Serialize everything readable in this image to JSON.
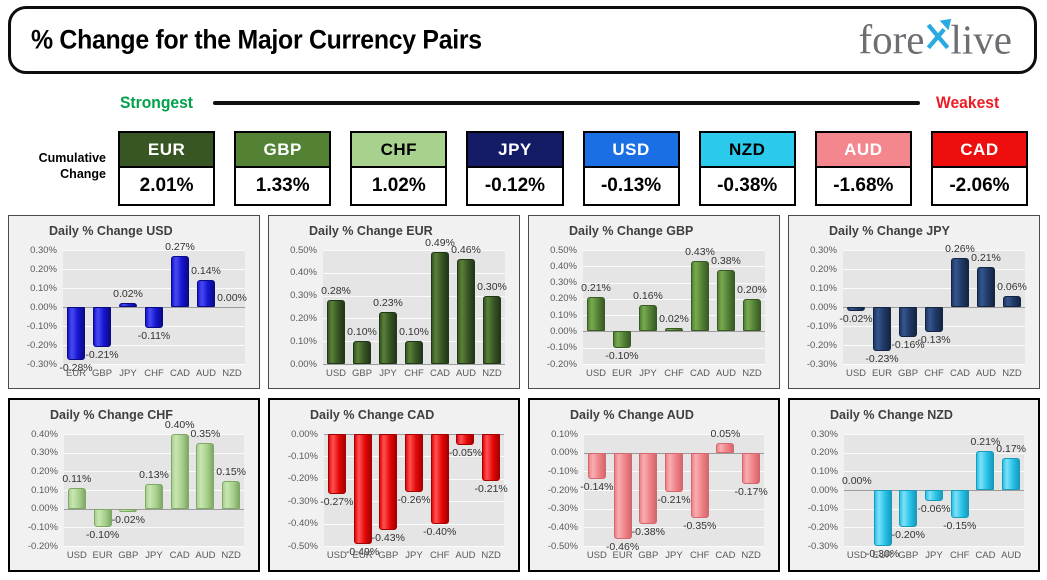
{
  "header": {
    "title": "% Change for the Major Currency Pairs",
    "logo": {
      "part1": "fore",
      "x": "X",
      "part2": "live",
      "x_color": "#29ABE2",
      "text_color": "#6d6e71"
    }
  },
  "scale": {
    "strongest": "Strongest",
    "weakest": "Weakest",
    "strongest_color": "#00A14B",
    "weakest_color": "#ED1C24"
  },
  "cumulative": {
    "label_line1": "Cumulative",
    "label_line2": "Change",
    "items": [
      {
        "code": "EUR",
        "value": "2.01%",
        "bg": "#375623",
        "fg": "#ffffff"
      },
      {
        "code": "GBP",
        "value": "1.33%",
        "bg": "#548235",
        "fg": "#ffffff"
      },
      {
        "code": "CHF",
        "value": "1.02%",
        "bg": "#A9D18E",
        "fg": "#000000"
      },
      {
        "code": "JPY",
        "value": "-0.12%",
        "bg": "#151C66",
        "fg": "#ffffff"
      },
      {
        "code": "USD",
        "value": "-0.13%",
        "bg": "#1B6FE5",
        "fg": "#ffffff"
      },
      {
        "code": "NZD",
        "value": "-0.38%",
        "bg": "#2BC9EC",
        "fg": "#000000"
      },
      {
        "code": "AUD",
        "value": "-1.68%",
        "bg": "#F4878D",
        "fg": "#ffffff"
      },
      {
        "code": "CAD",
        "value": "-2.06%",
        "bg": "#EE0E0E",
        "fg": "#ffffff"
      }
    ]
  },
  "chart_data": [
    {
      "type": "bar",
      "id": "USD",
      "title": "Daily % Change USD",
      "categories": [
        "EUR",
        "GBP",
        "JPY",
        "CHF",
        "CAD",
        "AUD",
        "NZD"
      ],
      "values": [
        -0.28,
        -0.21,
        0.02,
        -0.11,
        0.27,
        0.14,
        0.0
      ],
      "labels": [
        "-0.28%",
        "-0.21%",
        "0.02%",
        "-0.11%",
        "0.27%",
        "0.14%",
        "0.00%"
      ],
      "ylim": [
        -0.3,
        0.3
      ],
      "ytick_step": 0.1,
      "grid": true,
      "legend": "none",
      "bar_base": "#1515D2",
      "bar_light": "#4A4AF2",
      "bar_dark": "#0A0A85"
    },
    {
      "type": "bar",
      "id": "EUR",
      "title": "Daily % Change EUR",
      "categories": [
        "USD",
        "GBP",
        "JPY",
        "CHF",
        "CAD",
        "AUD",
        "NZD"
      ],
      "values": [
        0.28,
        0.1,
        0.23,
        0.1,
        0.49,
        0.46,
        0.3
      ],
      "labels": [
        "0.28%",
        "0.10%",
        "0.23%",
        "0.10%",
        "0.49%",
        "0.46%",
        "0.30%"
      ],
      "ylim": [
        0.0,
        0.5
      ],
      "ytick_step": 0.1,
      "grid": true,
      "legend": "none",
      "bar_base": "#375623",
      "bar_light": "#5A8139",
      "bar_dark": "#22361A"
    },
    {
      "type": "bar",
      "id": "GBP",
      "title": "Daily % Change GBP",
      "categories": [
        "USD",
        "EUR",
        "JPY",
        "CHF",
        "CAD",
        "AUD",
        "NZD"
      ],
      "values": [
        0.21,
        -0.1,
        0.16,
        0.02,
        0.43,
        0.38,
        0.2
      ],
      "labels": [
        "0.21%",
        "-0.10%",
        "0.16%",
        "0.02%",
        "0.43%",
        "0.38%",
        "0.20%"
      ],
      "ylim": [
        -0.2,
        0.5
      ],
      "ytick_step": 0.1,
      "grid": true,
      "legend": "none",
      "bar_base": "#548235",
      "bar_light": "#79AA50",
      "bar_dark": "#395A25"
    },
    {
      "type": "bar",
      "id": "JPY",
      "title": "Daily % Change JPY",
      "categories": [
        "USD",
        "EUR",
        "GBP",
        "CHF",
        "CAD",
        "AUD",
        "NZD"
      ],
      "values": [
        -0.02,
        -0.23,
        -0.16,
        -0.13,
        0.26,
        0.21,
        0.06
      ],
      "labels": [
        "-0.02%",
        "-0.23%",
        "-0.16%",
        "-0.13%",
        "0.26%",
        "0.21%",
        "0.06%"
      ],
      "ylim": [
        -0.3,
        0.3
      ],
      "ytick_step": 0.1,
      "grid": true,
      "legend": "none",
      "bar_base": "#1F3864",
      "bar_light": "#35568E",
      "bar_dark": "#132541"
    },
    {
      "type": "bar",
      "id": "CHF",
      "title": "Daily % Change CHF",
      "categories": [
        "USD",
        "EUR",
        "GBP",
        "JPY",
        "CAD",
        "AUD",
        "NZD"
      ],
      "values": [
        0.11,
        -0.1,
        -0.02,
        0.13,
        0.4,
        0.35,
        0.15
      ],
      "labels": [
        "0.11%",
        "-0.10%",
        "-0.02%",
        "0.13%",
        "0.40%",
        "0.35%",
        "0.15%"
      ],
      "ylim": [
        -0.2,
        0.4
      ],
      "ytick_step": 0.1,
      "grid": true,
      "legend": "none",
      "bar_base": "#A9D18E",
      "bar_light": "#C8E6B2",
      "bar_dark": "#7FA866"
    },
    {
      "type": "bar",
      "id": "CAD",
      "title": "Daily % Change CAD",
      "categories": [
        "USD",
        "EUR",
        "GBP",
        "JPY",
        "CHF",
        "AUD",
        "NZD"
      ],
      "values": [
        -0.27,
        -0.49,
        -0.43,
        -0.26,
        -0.4,
        -0.05,
        -0.21
      ],
      "labels": [
        "-0.27%",
        "-0.49%",
        "-0.43%",
        "-0.26%",
        "-0.40%",
        "-0.05%",
        "-0.21%"
      ],
      "ylim": [
        -0.5,
        0.0
      ],
      "ytick_step": 0.1,
      "grid": true,
      "legend": "none",
      "bar_base": "#E60808",
      "bar_light": "#FF5252",
      "bar_dark": "#A50000"
    },
    {
      "type": "bar",
      "id": "AUD",
      "title": "Daily % Change AUD",
      "categories": [
        "USD",
        "EUR",
        "GBP",
        "JPY",
        "CHF",
        "CAD",
        "NZD"
      ],
      "values": [
        -0.14,
        -0.46,
        -0.38,
        -0.21,
        -0.35,
        0.05,
        -0.17
      ],
      "labels": [
        "-0.14%",
        "-0.46%",
        "-0.38%",
        "-0.21%",
        "-0.35%",
        "0.05%",
        "-0.17%"
      ],
      "ylim": [
        -0.5,
        0.1
      ],
      "ytick_step": 0.1,
      "grid": true,
      "legend": "none",
      "bar_base": "#F08288",
      "bar_light": "#F8AFB3",
      "bar_dark": "#D4666E"
    },
    {
      "type": "bar",
      "id": "NZD",
      "title": "Daily % Change NZD",
      "categories": [
        "USD",
        "EUR",
        "GBP",
        "JPY",
        "CHF",
        "CAD",
        "AUD"
      ],
      "values": [
        0.0,
        -0.3,
        -0.2,
        -0.06,
        -0.15,
        0.21,
        0.17
      ],
      "labels": [
        "0.00%",
        "-0.30%",
        "-0.20%",
        "-0.06%",
        "-0.15%",
        "0.21%",
        "0.17%"
      ],
      "ylim": [
        -0.3,
        0.3
      ],
      "ytick_step": 0.1,
      "grid": true,
      "legend": "none",
      "bar_base": "#27C4E8",
      "bar_light": "#7FE0F7",
      "bar_dark": "#189BBB"
    }
  ]
}
